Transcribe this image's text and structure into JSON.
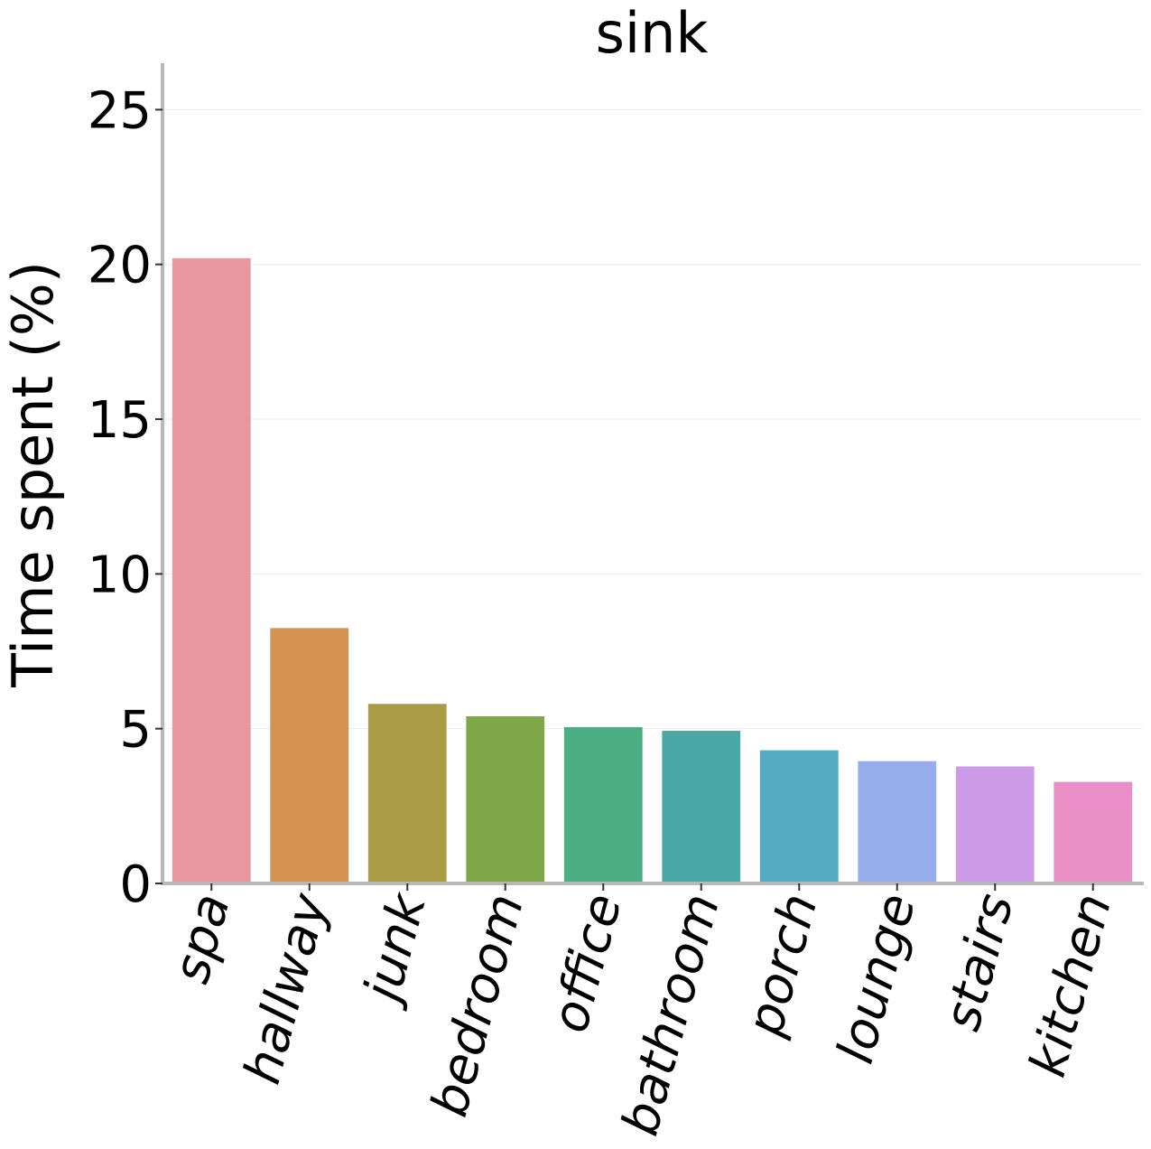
{
  "chart_data": {
    "type": "bar",
    "title": "sink",
    "xlabel": "",
    "ylabel": "Time spent (%)",
    "categories": [
      "spa",
      "hallway",
      "junk",
      "bedroom",
      "office",
      "bathroom",
      "porch",
      "lounge",
      "stairs",
      "kitchen"
    ],
    "values": [
      20.2,
      8.25,
      5.8,
      5.4,
      5.05,
      4.93,
      4.3,
      3.95,
      3.78,
      3.28
    ],
    "colors": [
      "#e8969f",
      "#d49350",
      "#a99c45",
      "#7ea847",
      "#4caf83",
      "#4aa9a6",
      "#52abc3",
      "#95adea",
      "#cd9ae8",
      "#ea8ec8"
    ],
    "ylim": [
      0,
      26.5
    ],
    "yticks": [
      0,
      5,
      10,
      15,
      20,
      25
    ],
    "ytick_labels": [
      "0",
      "5",
      "10",
      "15",
      "20",
      "25"
    ],
    "grid": "horizontal",
    "legend": "none"
  }
}
